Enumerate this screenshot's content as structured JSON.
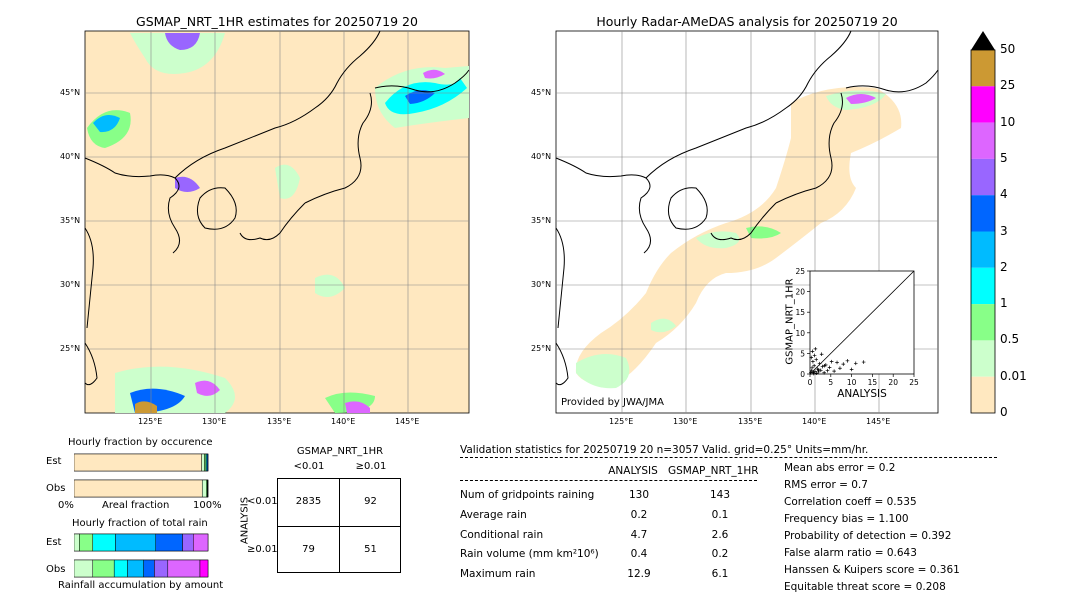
{
  "left_map": {
    "title": "GSMAP_NRT_1HR estimates for 20250719 20",
    "lat_labels": [
      "45°N",
      "40°N",
      "35°N",
      "30°N",
      "25°N"
    ],
    "lon_labels": [
      "125°E",
      "130°E",
      "135°E",
      "140°E",
      "145°E"
    ]
  },
  "right_map": {
    "title": "Hourly Radar-AMeDAS analysis for 20250719 20",
    "lat_labels": [
      "45°N",
      "40°N",
      "35°N",
      "30°N",
      "25°N"
    ],
    "lon_labels": [
      "125°E",
      "130°E",
      "135°E",
      "140°E",
      "145°E"
    ],
    "provider": "Provided by JWA/JMA"
  },
  "colorbar": {
    "labels": [
      "50",
      "25",
      "10",
      "5",
      "4",
      "3",
      "2",
      "1",
      "0.5",
      "0.01",
      "0"
    ],
    "colors": [
      "#cc9933",
      "#ff00ff",
      "#dd66ff",
      "#9966ff",
      "#0066ff",
      "#00bbff",
      "#00ffff",
      "#88ff88",
      "#ccffcc",
      "#ffe8c0"
    ]
  },
  "occurrence": {
    "title": "Hourly fraction by occurence",
    "row_labels": [
      "Est",
      "Obs"
    ],
    "axis_labels": [
      "0%",
      "Areal fraction",
      "100%"
    ]
  },
  "total_rain": {
    "title": "Hourly fraction of total rain",
    "row_labels": [
      "Est",
      "Obs"
    ],
    "footer": "Rainfall accumulation by amount"
  },
  "contingency": {
    "title": "GSMAP_NRT_1HR",
    "col_labels": [
      "<0.01",
      "≥0.01"
    ],
    "row_axis": "ANALYSIS",
    "row_labels": [
      "<0.01",
      "≥0.01"
    ],
    "cells": [
      "2835",
      "92",
      "79",
      "51"
    ]
  },
  "validation": {
    "header": "Validation statistics for 20250719 20  n=3057 Valid. grid=0.25° Units=mm/hr.",
    "col_analysis": "ANALYSIS",
    "col_gsmap": "GSMAP_NRT_1HR",
    "rows": [
      {
        "label": "Num of gridpoints raining",
        "analysis": "130",
        "gsmap": "143"
      },
      {
        "label": "Average rain",
        "analysis": "0.2",
        "gsmap": "0.1"
      },
      {
        "label": "Conditional rain",
        "analysis": "4.7",
        "gsmap": "2.6"
      },
      {
        "label": "Rain volume (mm km²10⁶)",
        "analysis": "0.4",
        "gsmap": "0.2"
      },
      {
        "label": "Maximum rain",
        "analysis": "12.9",
        "gsmap": "6.1"
      }
    ],
    "scores": [
      "Mean abs error =    0.2",
      "RMS error =    0.7",
      "Correlation coeff =  0.535",
      "Frequency bias =  1.100",
      "Probability of detection =  0.392",
      "False alarm ratio =  0.643",
      "Hanssen & Kuipers score =  0.361",
      "Equitable threat score =  0.208"
    ]
  },
  "chart_data": [
    {
      "type": "bar",
      "title": "Hourly fraction by occurence",
      "categories": [
        "Est",
        "Obs"
      ],
      "series": [
        {
          "values": [
            0.953,
            0.957
          ]
        },
        {
          "values": [
            0.02,
            0.03
          ]
        },
        {
          "values": [
            0.012,
            0.008
          ]
        },
        {
          "values": [
            0.008,
            0.003
          ]
        },
        {
          "values": [
            0.007,
            0.002
          ]
        }
      ],
      "xlabel": "Areal fraction",
      "xlim": [
        0,
        1
      ]
    },
    {
      "type": "bar",
      "title": "Hourly fraction of total rain",
      "categories": [
        "Est",
        "Obs"
      ],
      "series": [
        {
          "values": [
            0.04,
            0.14
          ]
        },
        {
          "values": [
            0.1,
            0.16
          ]
        },
        {
          "values": [
            0.17,
            0.1
          ]
        },
        {
          "values": [
            0.3,
            0.12
          ]
        },
        {
          "values": [
            0.2,
            0.08
          ]
        },
        {
          "values": [
            0.08,
            0.1
          ]
        },
        {
          "values": [
            0.11,
            0.24
          ]
        },
        {
          "values": [
            0.0,
            0.06
          ]
        }
      ],
      "xlabel": "Rainfall accumulation by amount",
      "xlim": [
        0,
        1
      ]
    },
    {
      "type": "scatter",
      "title": "",
      "xlabel": "ANALYSIS",
      "ylabel": "GSMAP_NRT_1HR",
      "xlim": [
        0,
        25
      ],
      "ylim": [
        0,
        25
      ],
      "ticks": [
        "0",
        "5",
        "10",
        "15",
        "20",
        "25"
      ],
      "x": [
        0.2,
        0.4,
        0.5,
        0.8,
        1.0,
        1.2,
        1.5,
        1.8,
        2.0,
        2.3,
        2.6,
        3.0,
        3.4,
        3.8,
        4.2,
        4.7,
        5.2,
        5.8,
        6.5,
        7.2,
        8.0,
        9.0,
        10.0,
        11.0,
        12.9,
        0.3,
        0.6,
        1.1,
        1.6,
        2.1,
        2.8,
        3.5,
        0.9,
        1.3,
        0.7
      ],
      "y": [
        0.3,
        0.8,
        1.5,
        0.4,
        2.0,
        0.6,
        3.5,
        1.2,
        0.5,
        2.5,
        0.9,
        1.8,
        0.3,
        2.2,
        0.8,
        1.6,
        3.0,
        0.7,
        2.8,
        1.4,
        2.4,
        3.2,
        1.1,
        2.6,
        2.9,
        4.0,
        5.5,
        4.5,
        0.2,
        1.0,
        4.8,
        2.0,
        0.1,
        6.1,
        3.0
      ]
    }
  ]
}
